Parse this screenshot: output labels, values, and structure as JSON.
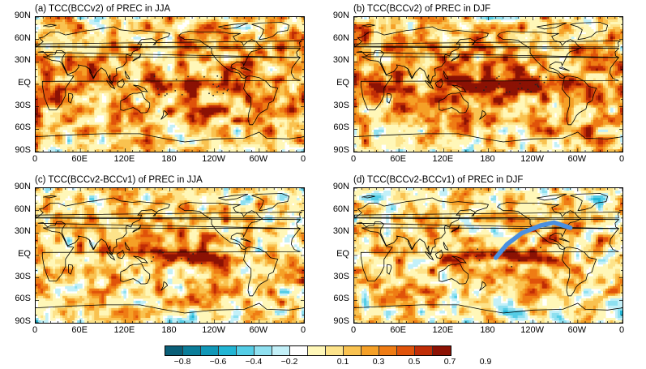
{
  "panels": [
    {
      "id": "a",
      "title": "(a) TCC(BCCv2) of PREC in JJA",
      "season": "JJA",
      "diff": false,
      "arrow": false
    },
    {
      "id": "b",
      "title": "(b) TCC(BCCv2) of PREC in DJF",
      "season": "DJF",
      "diff": false,
      "arrow": false
    },
    {
      "id": "c",
      "title": "(c) TCC(BCCv2-BCCv1) of PREC in JJA",
      "season": "JJA",
      "diff": true,
      "arrow": false
    },
    {
      "id": "d",
      "title": "(d) TCC(BCCv2-BCCv1) of PREC in DJF",
      "season": "DJF",
      "diff": true,
      "arrow": true,
      "arrow_color": "#4a8fe0"
    }
  ],
  "lat_labels": [
    "90N",
    "60N",
    "30N",
    "EQ",
    "30S",
    "60S",
    "90S"
  ],
  "lon_labels": [
    "0",
    "60E",
    "120E",
    "180",
    "120W",
    "60W",
    "0"
  ],
  "colorbar": {
    "colors": [
      "#0a5f78",
      "#0b7d99",
      "#1198b8",
      "#22b5d4",
      "#54cde6",
      "#8fe0f0",
      "#c3f0f8",
      "#ffffff",
      "#fff7b8",
      "#fde38a",
      "#f9c250",
      "#f5a027",
      "#ef7c14",
      "#e0530a",
      "#c02d06",
      "#8c1204"
    ],
    "labels": [
      "−0.8",
      "−0.6",
      "−0.4",
      "−0.2",
      "0.1",
      "0.3",
      "0.5",
      "0.7",
      "0.9"
    ]
  }
}
